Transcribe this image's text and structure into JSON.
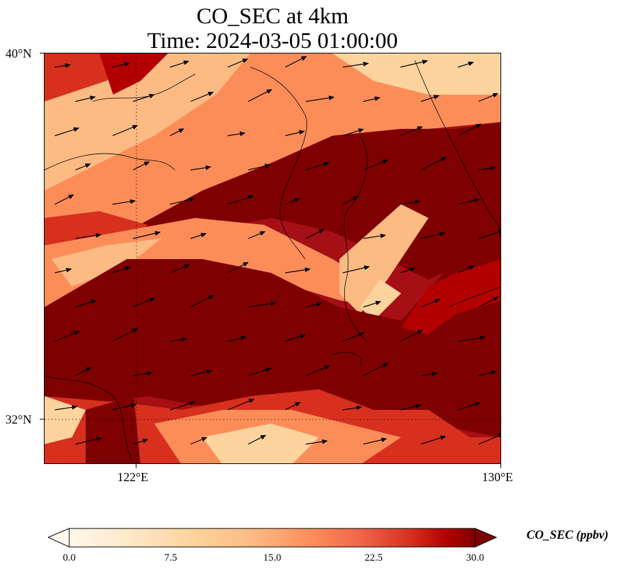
{
  "title_line1": "CO_SEC at 4km",
  "title_line2": "Time: 2024-03-05 01:00:00",
  "map": {
    "lat_ticks": [
      "40°N",
      "32°N"
    ],
    "lon_ticks": [
      "122°E",
      "130°E"
    ],
    "lat_range": [
      31,
      40
    ],
    "lon_range": [
      120,
      130
    ],
    "gridlines": "dotted at 122°E and 32°N",
    "overlay": "wind vectors (arrows) and coastlines"
  },
  "colorbar": {
    "title": "CO_SEC (ppbv)",
    "colormap": "OrRd",
    "tick_labels": [
      "0.0",
      "7.5",
      "15.0",
      "22.5",
      "30.0"
    ],
    "range": [
      0,
      30
    ],
    "extend": "both"
  },
  "colors": {
    "high": "#7f0000",
    "mid_high": "#d7301f",
    "mid": "#fc8d59",
    "low": "#fdd49e",
    "lowest": "#fff7ec"
  }
}
